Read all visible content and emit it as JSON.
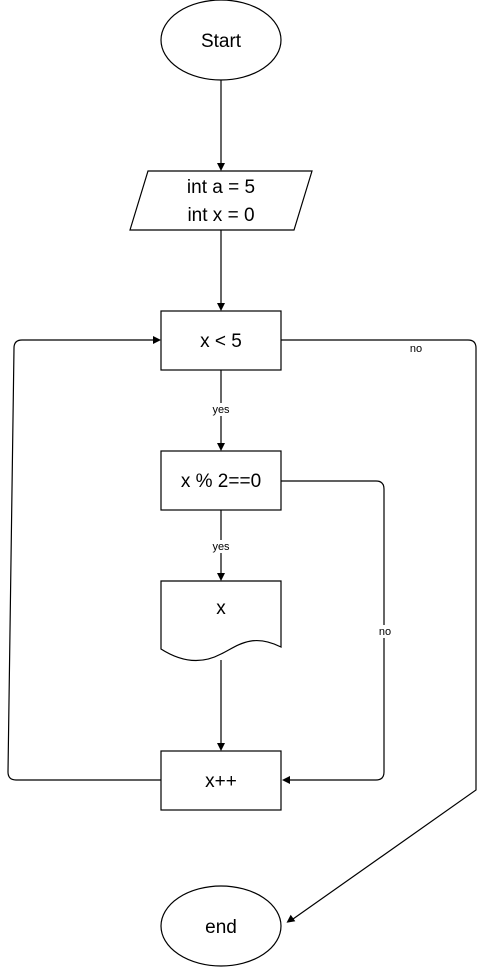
{
  "nodes": {
    "start": "Start",
    "init_line1": "int a = 5",
    "init_line2": "int x = 0",
    "cond_loop": "x < 5",
    "cond_even": "x % 2==0",
    "output": "x",
    "increment": "x++",
    "end": "end"
  },
  "edges": {
    "loop_yes": "yes",
    "loop_no": "no",
    "even_yes": "yes",
    "even_no": "no"
  }
}
